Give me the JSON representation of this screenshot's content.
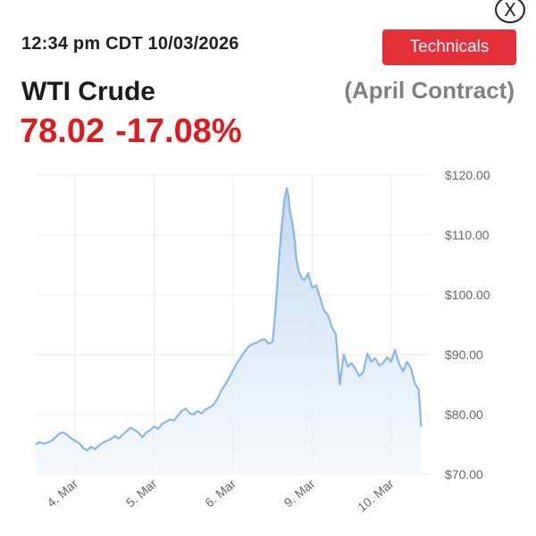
{
  "header": {
    "close_label": "X",
    "timestamp": "12:34 pm CDT 10/03/2026",
    "technicals_label": "Technicals",
    "instrument": "WTI Crude",
    "contract": "(April Contract)",
    "price": "78.02",
    "change_pct": "-17.08%"
  },
  "colors": {
    "accent_red": "#e5303a",
    "price_red": "#dc1c1c",
    "line_blue": "#86b7e6",
    "fill_blue": "#cfe2f5",
    "grid": "#ececec",
    "axis_text": "#666666"
  },
  "chart_data": {
    "type": "area",
    "x_tick_labels": [
      "4. Mar",
      "5. Mar",
      "6. Mar",
      "9. Mar",
      "10. Mar"
    ],
    "y_tick_labels": [
      "$120.00",
      "$110.00",
      "$100.00",
      "$90.00",
      "$80.00",
      "$70.00"
    ],
    "ylim": [
      70,
      120
    ],
    "grid": true,
    "y_axis_side": "right",
    "x_tick_positions": [
      0.5,
      1.5,
      2.5,
      3.5,
      4.5
    ],
    "xlim": [
      0.0,
      5.0
    ],
    "series": [
      {
        "x": [
          0.0,
          0.05,
          0.1,
          0.15,
          0.2,
          0.25,
          0.3,
          0.35,
          0.4,
          0.45,
          0.5,
          0.55,
          0.6,
          0.65,
          0.7,
          0.75,
          0.8,
          0.85,
          0.9,
          0.95,
          1.0,
          1.05,
          1.1,
          1.15,
          1.2,
          1.25,
          1.3,
          1.35,
          1.4,
          1.45,
          1.5,
          1.55,
          1.6,
          1.65,
          1.7,
          1.75,
          1.8,
          1.85,
          1.9,
          1.95,
          2.0,
          2.05,
          2.1,
          2.15,
          2.2,
          2.25,
          2.3,
          2.35,
          2.4,
          2.45,
          2.5,
          2.55,
          2.6,
          2.65,
          2.7,
          2.75,
          2.8,
          2.85,
          2.9,
          2.95,
          3.0,
          3.02,
          3.05,
          3.08,
          3.12,
          3.15,
          3.18,
          3.2,
          3.22,
          3.25,
          3.28,
          3.3,
          3.33,
          3.36,
          3.4,
          3.45,
          3.5,
          3.55,
          3.6,
          3.65,
          3.7,
          3.75,
          3.8,
          3.85,
          3.9,
          3.95,
          4.0,
          4.05,
          4.1,
          4.15,
          4.2,
          4.25,
          4.3,
          4.35,
          4.4,
          4.45,
          4.5,
          4.55,
          4.6,
          4.65,
          4.7,
          4.75,
          4.8,
          4.85,
          4.88
        ],
        "values": [
          75.0,
          75.4,
          75.1,
          75.3,
          75.6,
          76.2,
          76.8,
          77.0,
          76.6,
          76.0,
          75.6,
          75.2,
          74.4,
          74.0,
          74.6,
          74.2,
          74.8,
          75.3,
          75.6,
          75.9,
          76.4,
          76.0,
          76.6,
          77.2,
          77.8,
          77.4,
          77.0,
          76.2,
          77.0,
          77.4,
          78.0,
          77.6,
          78.4,
          78.8,
          79.2,
          79.0,
          79.8,
          80.6,
          81.0,
          80.2,
          80.0,
          80.6,
          80.2,
          80.8,
          81.2,
          81.6,
          82.6,
          84.0,
          85.0,
          86.2,
          87.4,
          88.6,
          89.6,
          90.6,
          91.4,
          91.8,
          92.0,
          92.4,
          92.6,
          91.8,
          92.2,
          95.0,
          100.0,
          106.0,
          112.0,
          116.0,
          117.8,
          116.4,
          114.0,
          112.0,
          109.0,
          106.0,
          104.0,
          103.0,
          102.4,
          103.6,
          101.2,
          101.6,
          99.6,
          97.4,
          96.6,
          94.6,
          93.4,
          85.0,
          90.0,
          88.0,
          88.6,
          87.6,
          86.4,
          87.2,
          90.2,
          88.8,
          89.4,
          88.2,
          88.6,
          89.6,
          88.8,
          90.8,
          88.6,
          87.2,
          88.8,
          87.8,
          85.2,
          84.2,
          78.02
        ]
      }
    ]
  }
}
